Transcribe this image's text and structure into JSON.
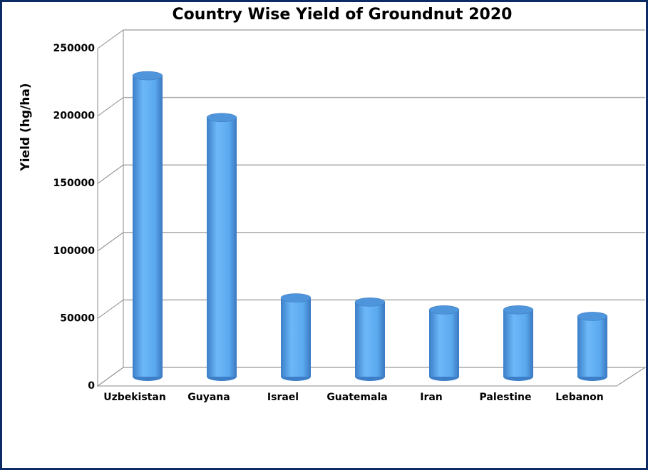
{
  "chart_data": {
    "type": "bar",
    "title": "Country Wise Yield of Groundnut 2020",
    "y_label": "Yield (hg/ha)",
    "categories": [
      "Uzbekistan",
      "Guyana",
      "Israel",
      "Guatemala",
      "Iran",
      "Palestine",
      "Lebanon"
    ],
    "values": [
      223000,
      192000,
      58400,
      55300,
      49500,
      49500,
      44700
    ],
    "color": "#5aa8ee",
    "ylim": [
      0,
      250000
    ],
    "yticks": [
      0,
      50000,
      100000,
      150000,
      200000,
      250000
    ],
    "grid": true
  }
}
